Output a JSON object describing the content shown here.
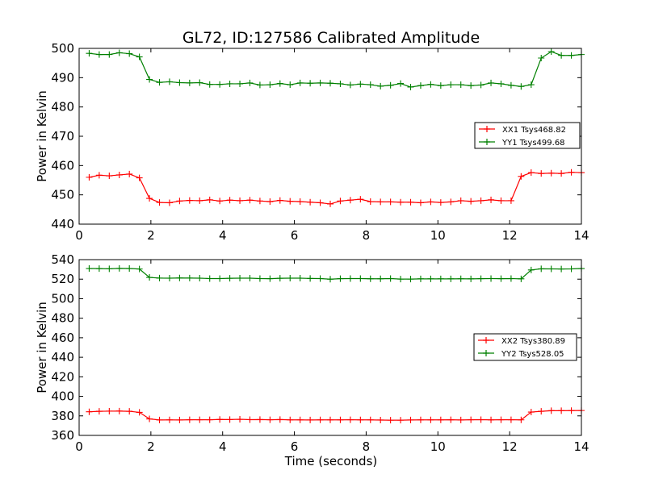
{
  "chart_data": [
    {
      "type": "line",
      "title": "GL72, ID:127586 Calibrated Amplitude",
      "xlabel": "",
      "ylabel": "Power in Kelvin",
      "xlim": [
        0,
        14
      ],
      "ylim": [
        440,
        500
      ],
      "xticks": [
        0,
        2,
        4,
        6,
        8,
        10,
        12,
        14
      ],
      "yticks": [
        440,
        450,
        460,
        470,
        480,
        490,
        500
      ],
      "grid": false,
      "legend_position": "center-right",
      "x": [
        0.28,
        0.56,
        0.84,
        1.12,
        1.4,
        1.68,
        1.96,
        2.24,
        2.52,
        2.8,
        3.08,
        3.36,
        3.64,
        3.92,
        4.2,
        4.48,
        4.76,
        5.04,
        5.32,
        5.6,
        5.88,
        6.16,
        6.44,
        6.72,
        7.0,
        7.28,
        7.56,
        7.84,
        8.12,
        8.4,
        8.68,
        8.96,
        9.24,
        9.52,
        9.8,
        10.08,
        10.36,
        10.64,
        10.92,
        11.2,
        11.48,
        11.76,
        12.04,
        12.32,
        12.6,
        12.88,
        13.16,
        13.44,
        13.72,
        14.0
      ],
      "series": [
        {
          "name": "XX1 Tsys468.82",
          "color": "#ff0000",
          "values": [
            456.0,
            456.7,
            456.5,
            456.8,
            457.1,
            455.8,
            448.8,
            447.4,
            447.3,
            447.9,
            448.1,
            448.0,
            448.3,
            447.9,
            448.2,
            448.0,
            448.2,
            447.9,
            447.7,
            448.1,
            447.8,
            447.7,
            447.5,
            447.3,
            446.9,
            447.9,
            448.2,
            448.5,
            447.7,
            447.6,
            447.6,
            447.5,
            447.5,
            447.3,
            447.6,
            447.4,
            447.6,
            448.0,
            447.8,
            448.0,
            448.3,
            448.0,
            448.0,
            456.3,
            457.6,
            457.3,
            457.4,
            457.3,
            457.7,
            457.6
          ]
        },
        {
          "name": "YY1 Tsys499.68",
          "color": "#008000",
          "values": [
            498.3,
            497.9,
            497.9,
            498.5,
            498.2,
            497.1,
            489.4,
            488.4,
            488.6,
            488.3,
            488.2,
            488.3,
            487.7,
            487.7,
            487.9,
            487.9,
            488.2,
            487.5,
            487.6,
            488.0,
            487.6,
            488.2,
            488.1,
            488.2,
            488.1,
            487.9,
            487.5,
            487.8,
            487.6,
            487.1,
            487.4,
            488.0,
            486.8,
            487.3,
            487.7,
            487.3,
            487.6,
            487.6,
            487.3,
            487.5,
            488.2,
            487.9,
            487.4,
            487.0,
            487.6,
            496.7,
            498.9,
            497.6,
            497.6,
            497.9
          ]
        }
      ]
    },
    {
      "type": "line",
      "title": "",
      "xlabel": "Time (seconds)",
      "ylabel": "Power in Kelvin",
      "xlim": [
        0,
        14
      ],
      "ylim": [
        360,
        540
      ],
      "xticks": [
        0,
        2,
        4,
        6,
        8,
        10,
        12,
        14
      ],
      "yticks": [
        360,
        380,
        400,
        420,
        440,
        460,
        480,
        500,
        520,
        540
      ],
      "grid": false,
      "legend_position": "center-right",
      "x": [
        0.28,
        0.56,
        0.84,
        1.12,
        1.4,
        1.68,
        1.96,
        2.24,
        2.52,
        2.8,
        3.08,
        3.36,
        3.64,
        3.92,
        4.2,
        4.48,
        4.76,
        5.04,
        5.32,
        5.6,
        5.88,
        6.16,
        6.44,
        6.72,
        7.0,
        7.28,
        7.56,
        7.84,
        8.12,
        8.4,
        8.68,
        8.96,
        9.24,
        9.52,
        9.8,
        10.08,
        10.36,
        10.64,
        10.92,
        11.2,
        11.48,
        11.76,
        12.04,
        12.32,
        12.6,
        12.88,
        13.16,
        13.44,
        13.72,
        14.0
      ],
      "series": [
        {
          "name": "XX2 Tsys380.89",
          "color": "#ff0000",
          "values": [
            384.2,
            384.7,
            384.8,
            384.9,
            384.7,
            383.6,
            376.9,
            375.8,
            375.9,
            375.8,
            376.0,
            376.0,
            376.0,
            376.3,
            376.2,
            376.5,
            376.1,
            376.2,
            376.0,
            376.2,
            375.9,
            375.9,
            375.8,
            375.9,
            375.9,
            375.9,
            376.0,
            375.9,
            375.9,
            375.7,
            375.6,
            375.6,
            375.8,
            375.9,
            375.9,
            375.9,
            376.0,
            375.8,
            376.0,
            376.1,
            375.9,
            376.0,
            376.0,
            375.9,
            383.9,
            384.7,
            385.3,
            385.3,
            385.4,
            385.5
          ]
        },
        {
          "name": "YY2 Tsys528.05",
          "color": "#008000",
          "values": [
            530.9,
            530.8,
            530.6,
            531.0,
            530.9,
            530.4,
            521.8,
            521.1,
            521.0,
            521.2,
            521.1,
            521.0,
            520.6,
            520.6,
            520.9,
            521.0,
            521.0,
            520.6,
            520.5,
            520.9,
            521.0,
            521.0,
            520.7,
            520.6,
            520.0,
            520.5,
            520.6,
            520.6,
            520.4,
            520.4,
            520.6,
            520.1,
            520.1,
            520.3,
            520.3,
            520.3,
            520.3,
            520.4,
            520.3,
            520.5,
            520.6,
            520.5,
            520.6,
            520.3,
            529.4,
            530.6,
            530.5,
            530.4,
            530.5,
            530.9
          ]
        }
      ]
    }
  ]
}
